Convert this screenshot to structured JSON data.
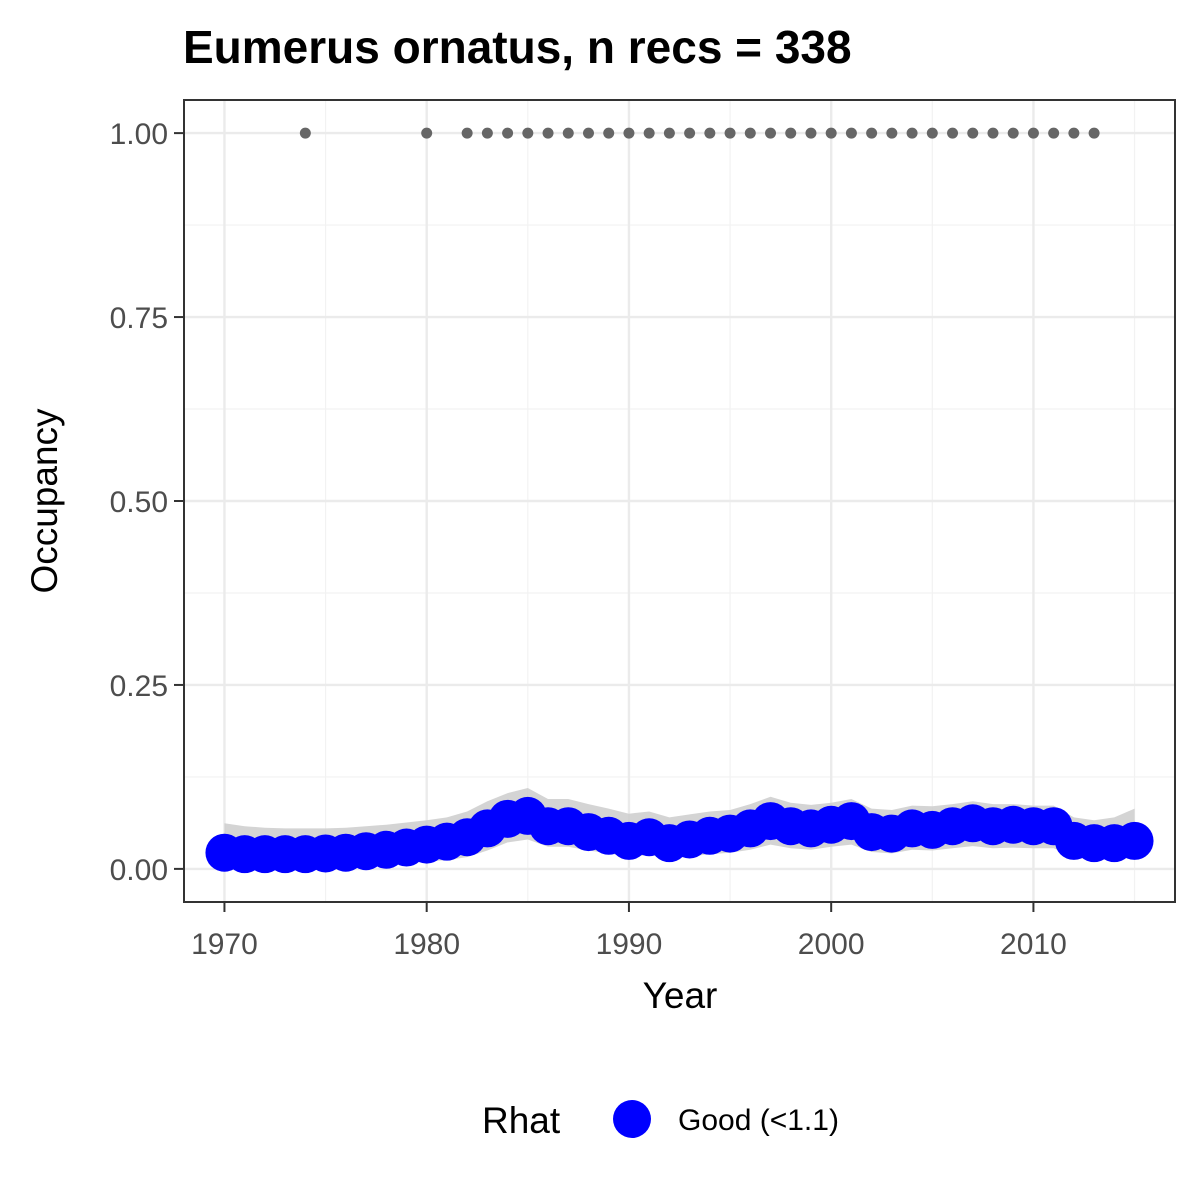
{
  "chart_data": {
    "type": "scatter",
    "title": "Eumerus ornatus, n recs = 338",
    "xlabel": "Year",
    "ylabel": "Occupancy",
    "xlim": [
      1968,
      2017
    ],
    "ylim": [
      -0.045,
      1.045
    ],
    "x_ticks": [
      1970,
      1980,
      1990,
      2000,
      2010
    ],
    "x_tick_labels": [
      "1970",
      "1980",
      "1990",
      "2000",
      "2010"
    ],
    "y_ticks": [
      0,
      0.25,
      0.5,
      0.75,
      1
    ],
    "y_tick_labels": [
      "0.00",
      "0.25",
      "0.50",
      "0.75",
      "1.00"
    ],
    "grid": true,
    "legend": {
      "title": "Rhat",
      "placement": "bottom",
      "entries": [
        {
          "label": "Good (<1.1)",
          "color": "#0000ff"
        }
      ]
    },
    "series": [
      {
        "role": "occupancy-estimate",
        "color": "#0000ff",
        "x": [
          1970,
          1971,
          1972,
          1973,
          1974,
          1975,
          1976,
          1977,
          1978,
          1979,
          1980,
          1981,
          1982,
          1983,
          1984,
          1985,
          1986,
          1987,
          1988,
          1989,
          1990,
          1991,
          1992,
          1993,
          1994,
          1995,
          1996,
          1997,
          1998,
          1999,
          2000,
          2001,
          2002,
          2003,
          2004,
          2005,
          2006,
          2007,
          2008,
          2009,
          2010,
          2011,
          2012,
          2013,
          2014,
          2015
        ],
        "y": [
          0.022,
          0.02,
          0.02,
          0.02,
          0.02,
          0.021,
          0.022,
          0.024,
          0.026,
          0.029,
          0.033,
          0.037,
          0.043,
          0.055,
          0.068,
          0.072,
          0.058,
          0.058,
          0.05,
          0.045,
          0.038,
          0.043,
          0.035,
          0.04,
          0.045,
          0.048,
          0.055,
          0.065,
          0.058,
          0.055,
          0.06,
          0.065,
          0.05,
          0.048,
          0.055,
          0.053,
          0.058,
          0.062,
          0.058,
          0.06,
          0.058,
          0.058,
          0.038,
          0.035,
          0.035,
          0.038
        ]
      },
      {
        "role": "credible-interval-upper",
        "color": "#cccccc",
        "x": [
          1970,
          1971,
          1972,
          1973,
          1974,
          1975,
          1976,
          1977,
          1978,
          1979,
          1980,
          1981,
          1982,
          1983,
          1984,
          1985,
          1986,
          1987,
          1988,
          1989,
          1990,
          1991,
          1992,
          1993,
          1994,
          1995,
          1996,
          1997,
          1998,
          1999,
          2000,
          2001,
          2002,
          2003,
          2004,
          2005,
          2006,
          2007,
          2008,
          2009,
          2010,
          2011,
          2012,
          2013,
          2014,
          2015
        ],
        "y": [
          0.062,
          0.058,
          0.056,
          0.055,
          0.055,
          0.055,
          0.056,
          0.058,
          0.06,
          0.063,
          0.066,
          0.07,
          0.078,
          0.092,
          0.103,
          0.11,
          0.095,
          0.095,
          0.088,
          0.082,
          0.075,
          0.078,
          0.07,
          0.074,
          0.078,
          0.08,
          0.088,
          0.098,
          0.09,
          0.087,
          0.09,
          0.095,
          0.082,
          0.08,
          0.086,
          0.085,
          0.088,
          0.092,
          0.088,
          0.088,
          0.086,
          0.086,
          0.07,
          0.066,
          0.07,
          0.082
        ]
      },
      {
        "role": "credible-interval-lower",
        "color": "#cccccc",
        "x": [
          1970,
          1971,
          1972,
          1973,
          1974,
          1975,
          1976,
          1977,
          1978,
          1979,
          1980,
          1981,
          1982,
          1983,
          1984,
          1985,
          1986,
          1987,
          1988,
          1989,
          1990,
          1991,
          1992,
          1993,
          1994,
          1995,
          1996,
          1997,
          1998,
          1999,
          2000,
          2001,
          2002,
          2003,
          2004,
          2005,
          2006,
          2007,
          2008,
          2009,
          2010,
          2011,
          2012,
          2013,
          2014,
          2015
        ],
        "y": [
          0.005,
          0.004,
          0.004,
          0.004,
          0.004,
          0.004,
          0.005,
          0.006,
          0.007,
          0.008,
          0.01,
          0.012,
          0.016,
          0.025,
          0.036,
          0.04,
          0.03,
          0.03,
          0.025,
          0.021,
          0.016,
          0.019,
          0.014,
          0.017,
          0.02,
          0.022,
          0.026,
          0.033,
          0.028,
          0.026,
          0.03,
          0.033,
          0.023,
          0.021,
          0.026,
          0.025,
          0.028,
          0.031,
          0.028,
          0.029,
          0.028,
          0.028,
          0.015,
          0.013,
          0.013,
          0.015
        ]
      },
      {
        "role": "recorded-years",
        "color": "#666666",
        "x": [
          1974,
          1980,
          1982,
          1983,
          1984,
          1985,
          1986,
          1987,
          1988,
          1989,
          1990,
          1991,
          1992,
          1993,
          1994,
          1995,
          1996,
          1997,
          1998,
          1999,
          2000,
          2001,
          2002,
          2003,
          2004,
          2005,
          2006,
          2007,
          2008,
          2009,
          2010,
          2011,
          2012,
          2013
        ],
        "y": [
          1,
          1,
          1,
          1,
          1,
          1,
          1,
          1,
          1,
          1,
          1,
          1,
          1,
          1,
          1,
          1,
          1,
          1,
          1,
          1,
          1,
          1,
          1,
          1,
          1,
          1,
          1,
          1,
          1,
          1,
          1,
          1,
          1,
          1
        ]
      }
    ]
  }
}
